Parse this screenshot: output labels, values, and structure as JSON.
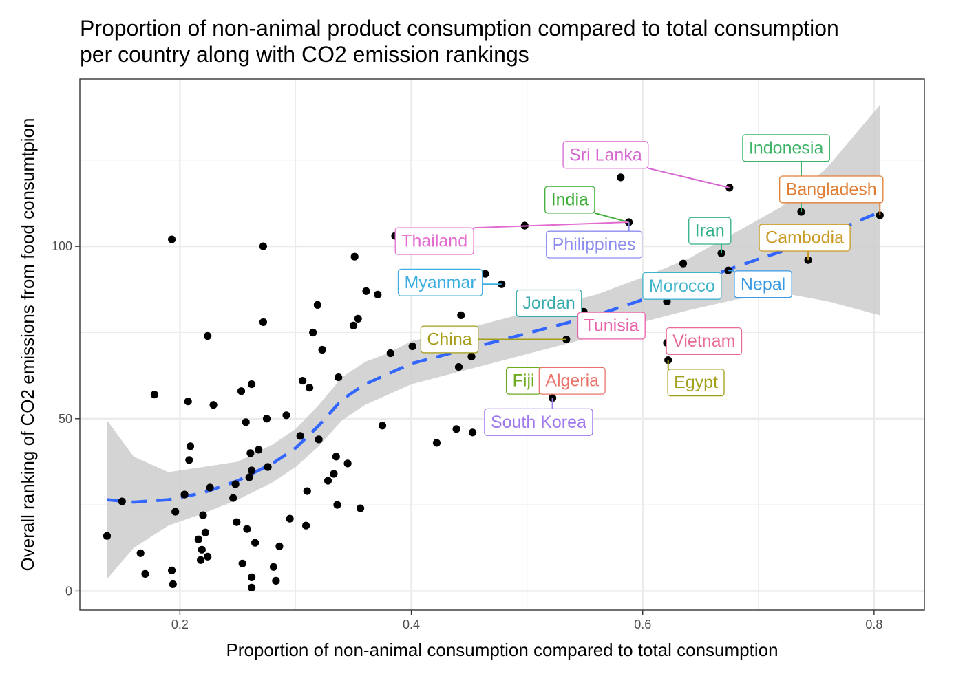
{
  "chart_data": {
    "type": "scatter",
    "title_lines": [
      "Proportion of non-animal product consumption compared to total consumption",
      "per country along with CO2 emission rankings"
    ],
    "xlabel": "Proportion of non-animal consumption compared to total consumption",
    "ylabel": "Overall ranking of CO2 emissions from food consumtpion",
    "xlim": [
      0.1135,
      0.8435
    ],
    "ylim": [
      -5.5,
      148.5
    ],
    "x_major_ticks": [
      0.2,
      0.4,
      0.6,
      0.8
    ],
    "x_tick_labels": [
      "0.2",
      "0.4",
      "0.6",
      "0.8"
    ],
    "x_minor_ticks": [
      0.3,
      0.5,
      0.7
    ],
    "y_major_ticks": [
      0,
      50,
      100
    ],
    "y_tick_labels": [
      "0",
      "50",
      "100"
    ],
    "y_minor_ticks": [
      25,
      75,
      125
    ],
    "grid": true,
    "colors": {
      "points": "#000000",
      "smooth_line": "#3366FF",
      "ribbon": "#cccccc",
      "grid": "#ebebeb",
      "panel_border": "#333333"
    },
    "points": [
      {
        "x": 0.137,
        "y": 16
      },
      {
        "x": 0.15,
        "y": 26
      },
      {
        "x": 0.166,
        "y": 11
      },
      {
        "x": 0.17,
        "y": 5
      },
      {
        "x": 0.178,
        "y": 57
      },
      {
        "x": 0.193,
        "y": 102
      },
      {
        "x": 0.193,
        "y": 6
      },
      {
        "x": 0.194,
        "y": 2
      },
      {
        "x": 0.196,
        "y": 23
      },
      {
        "x": 0.204,
        "y": 28
      },
      {
        "x": 0.207,
        "y": 55
      },
      {
        "x": 0.208,
        "y": 38
      },
      {
        "x": 0.209,
        "y": 42
      },
      {
        "x": 0.216,
        "y": 15
      },
      {
        "x": 0.218,
        "y": 9
      },
      {
        "x": 0.219,
        "y": 12
      },
      {
        "x": 0.22,
        "y": 22
      },
      {
        "x": 0.222,
        "y": 17
      },
      {
        "x": 0.224,
        "y": 10
      },
      {
        "x": 0.224,
        "y": 74
      },
      {
        "x": 0.226,
        "y": 30
      },
      {
        "x": 0.229,
        "y": 54
      },
      {
        "x": 0.246,
        "y": 27
      },
      {
        "x": 0.248,
        "y": 31
      },
      {
        "x": 0.249,
        "y": 20
      },
      {
        "x": 0.253,
        "y": 58
      },
      {
        "x": 0.254,
        "y": 8
      },
      {
        "x": 0.257,
        "y": 49
      },
      {
        "x": 0.258,
        "y": 18
      },
      {
        "x": 0.26,
        "y": 33
      },
      {
        "x": 0.261,
        "y": 40
      },
      {
        "x": 0.262,
        "y": 60
      },
      {
        "x": 0.262,
        "y": 35
      },
      {
        "x": 0.262,
        "y": 4
      },
      {
        "x": 0.262,
        "y": 1
      },
      {
        "x": 0.265,
        "y": 14
      },
      {
        "x": 0.268,
        "y": 41
      },
      {
        "x": 0.272,
        "y": 100
      },
      {
        "x": 0.272,
        "y": 78
      },
      {
        "x": 0.275,
        "y": 50
      },
      {
        "x": 0.276,
        "y": 36
      },
      {
        "x": 0.281,
        "y": 7
      },
      {
        "x": 0.283,
        "y": 3
      },
      {
        "x": 0.286,
        "y": 13
      },
      {
        "x": 0.292,
        "y": 51
      },
      {
        "x": 0.295,
        "y": 21
      },
      {
        "x": 0.304,
        "y": 45
      },
      {
        "x": 0.306,
        "y": 61
      },
      {
        "x": 0.309,
        "y": 19
      },
      {
        "x": 0.31,
        "y": 29
      },
      {
        "x": 0.312,
        "y": 59
      },
      {
        "x": 0.315,
        "y": 75
      },
      {
        "x": 0.319,
        "y": 83
      },
      {
        "x": 0.32,
        "y": 44
      },
      {
        "x": 0.323,
        "y": 70
      },
      {
        "x": 0.328,
        "y": 32
      },
      {
        "x": 0.333,
        "y": 34
      },
      {
        "x": 0.335,
        "y": 39
      },
      {
        "x": 0.336,
        "y": 25
      },
      {
        "x": 0.337,
        "y": 62
      },
      {
        "x": 0.345,
        "y": 37
      },
      {
        "x": 0.35,
        "y": 77
      },
      {
        "x": 0.351,
        "y": 97
      },
      {
        "x": 0.354,
        "y": 79
      },
      {
        "x": 0.356,
        "y": 24
      },
      {
        "x": 0.361,
        "y": 87
      },
      {
        "x": 0.371,
        "y": 86
      },
      {
        "x": 0.375,
        "y": 48
      },
      {
        "x": 0.382,
        "y": 69
      },
      {
        "x": 0.386,
        "y": 103
      },
      {
        "x": 0.401,
        "y": 71
      },
      {
        "x": 0.422,
        "y": 43
      },
      {
        "x": 0.439,
        "y": 47
      },
      {
        "x": 0.441,
        "y": 65
      },
      {
        "x": 0.443,
        "y": 80
      },
      {
        "x": 0.448,
        "y": 88
      },
      {
        "x": 0.452,
        "y": 68
      },
      {
        "x": 0.453,
        "y": 46
      },
      {
        "x": 0.464,
        "y": 92
      },
      {
        "x": 0.478,
        "y": 89
      },
      {
        "x": 0.498,
        "y": 106
      },
      {
        "x": 0.521,
        "y": 63
      },
      {
        "x": 0.522,
        "y": 56
      },
      {
        "x": 0.523,
        "y": 64
      },
      {
        "x": 0.524,
        "y": 85
      },
      {
        "x": 0.534,
        "y": 73
      },
      {
        "x": 0.549,
        "y": 81
      },
      {
        "x": 0.558,
        "y": 76
      },
      {
        "x": 0.581,
        "y": 120
      },
      {
        "x": 0.588,
        "y": 107
      },
      {
        "x": 0.621,
        "y": 84
      },
      {
        "x": 0.621,
        "y": 72
      },
      {
        "x": 0.622,
        "y": 67
      },
      {
        "x": 0.635,
        "y": 95
      },
      {
        "x": 0.668,
        "y": 98
      },
      {
        "x": 0.674,
        "y": 93
      },
      {
        "x": 0.675,
        "y": 117
      },
      {
        "x": 0.737,
        "y": 110
      },
      {
        "x": 0.743,
        "y": 96
      },
      {
        "x": 0.805,
        "y": 109
      }
    ],
    "smooth_fit": [
      {
        "x": 0.137,
        "y": 26.5,
        "lo": 3.5,
        "hi": 49.5
      },
      {
        "x": 0.16,
        "y": 25.8,
        "lo": 12.5,
        "hi": 39.0
      },
      {
        "x": 0.19,
        "y": 26.5,
        "lo": 19.0,
        "hi": 34.5
      },
      {
        "x": 0.22,
        "y": 28.5,
        "lo": 22.5,
        "hi": 36.0
      },
      {
        "x": 0.25,
        "y": 32.0,
        "lo": 26.5,
        "hi": 37.5
      },
      {
        "x": 0.28,
        "y": 37.0,
        "lo": 31.5,
        "hi": 42.5
      },
      {
        "x": 0.3,
        "y": 41.5,
        "lo": 36.0,
        "hi": 47.0
      },
      {
        "x": 0.32,
        "y": 48.0,
        "lo": 42.0,
        "hi": 54.0
      },
      {
        "x": 0.34,
        "y": 55.5,
        "lo": 49.5,
        "hi": 62.0
      },
      {
        "x": 0.36,
        "y": 60.0,
        "lo": 54.0,
        "hi": 66.5
      },
      {
        "x": 0.38,
        "y": 63.0,
        "lo": 57.0,
        "hi": 69.0
      },
      {
        "x": 0.4,
        "y": 66.0,
        "lo": 60.0,
        "hi": 72.5
      },
      {
        "x": 0.44,
        "y": 69.5,
        "lo": 63.5,
        "hi": 75.5
      },
      {
        "x": 0.48,
        "y": 73.0,
        "lo": 67.0,
        "hi": 79.0
      },
      {
        "x": 0.52,
        "y": 76.5,
        "lo": 70.5,
        "hi": 82.5
      },
      {
        "x": 0.56,
        "y": 80.0,
        "lo": 74.0,
        "hi": 86.0
      },
      {
        "x": 0.6,
        "y": 84.5,
        "lo": 78.0,
        "hi": 91.0
      },
      {
        "x": 0.64,
        "y": 89.0,
        "lo": 81.5,
        "hi": 96.5
      },
      {
        "x": 0.68,
        "y": 94.0,
        "lo": 84.5,
        "hi": 104.0
      },
      {
        "x": 0.72,
        "y": 98.5,
        "lo": 86.5,
        "hi": 111.5
      },
      {
        "x": 0.76,
        "y": 103.5,
        "lo": 84.0,
        "hi": 123.0
      },
      {
        "x": 0.805,
        "y": 110.0,
        "lo": 80.0,
        "hi": 141.0
      }
    ],
    "annotations": [
      {
        "label": "Sri Lanka",
        "x": 0.675,
        "y": 117,
        "label_x": 0.568,
        "label_y": 126.5,
        "color": "#D666D0"
      },
      {
        "label": "Indonesia",
        "x": 0.737,
        "y": 110,
        "label_x": 0.724,
        "label_y": 128.5,
        "color": "#3DB466"
      },
      {
        "label": "Bangladesh",
        "x": 0.805,
        "y": 109,
        "label_x": 0.763,
        "label_y": 116.5,
        "color": "#E07E35"
      },
      {
        "label": "India",
        "x": 0.588,
        "y": 107,
        "label_x": 0.537,
        "label_y": 113.5,
        "color": "#3DAE35"
      },
      {
        "label": "Thailand",
        "x": 0.588,
        "y": 107,
        "label_x": 0.42,
        "label_y": 101.5,
        "color": "#E36BD0"
      },
      {
        "label": "Philippines",
        "x": 0.588,
        "y": 107,
        "label_x": 0.558,
        "label_y": 100.5,
        "color": "#8C8DEE"
      },
      {
        "label": "Iran",
        "x": 0.668,
        "y": 98,
        "label_x": 0.658,
        "label_y": 104.5,
        "color": "#30B08B"
      },
      {
        "label": "Cambodia",
        "x": 0.743,
        "y": 96,
        "label_x": 0.74,
        "label_y": 102.5,
        "color": "#C99B26"
      },
      {
        "label": "Myanmar",
        "x": 0.478,
        "y": 89,
        "label_x": 0.425,
        "label_y": 89.5,
        "color": "#3EAEE0"
      },
      {
        "label": "Morocco",
        "x": 0.621,
        "y": 84,
        "label_x": 0.634,
        "label_y": 88.5,
        "color": "#3FB2CC"
      },
      {
        "label": "Nepal",
        "x": 0.674,
        "y": 93,
        "label_x": 0.704,
        "label_y": 89.0,
        "color": "#3A9AE6"
      },
      {
        "label": "Jordan",
        "x": 0.524,
        "y": 85,
        "label_x": 0.519,
        "label_y": 83.5,
        "color": "#36AAAA"
      },
      {
        "label": "Tunisia",
        "x": 0.558,
        "y": 76,
        "label_x": 0.573,
        "label_y": 77.0,
        "color": "#E862A9"
      },
      {
        "label": "China",
        "x": 0.534,
        "y": 73,
        "label_x": 0.433,
        "label_y": 73.0,
        "color": "#A59C17"
      },
      {
        "label": "Vietnam",
        "x": 0.621,
        "y": 72,
        "label_x": 0.653,
        "label_y": 72.5,
        "color": "#E86C94"
      },
      {
        "label": "Fiji",
        "x": 0.521,
        "y": 63,
        "label_x": 0.497,
        "label_y": 61.0,
        "color": "#6EAA1F"
      },
      {
        "label": "Algeria",
        "x": 0.523,
        "y": 64,
        "label_x": 0.539,
        "label_y": 61.0,
        "color": "#E8746C"
      },
      {
        "label": "Egypt",
        "x": 0.622,
        "y": 67,
        "label_x": 0.646,
        "label_y": 60.5,
        "color": "#A1A019"
      },
      {
        "label": "South Korea",
        "x": 0.522,
        "y": 56,
        "label_x": 0.51,
        "label_y": 49.0,
        "color": "#A078EE"
      }
    ]
  }
}
